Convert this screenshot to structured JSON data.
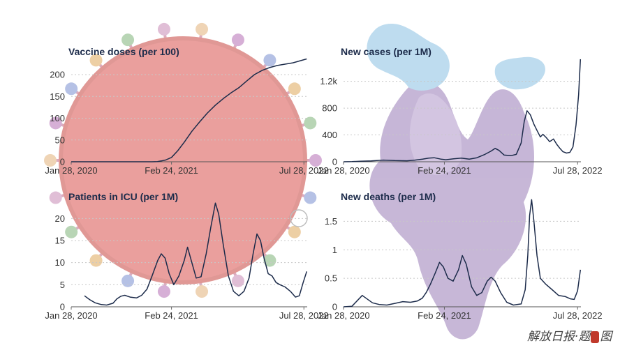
{
  "watermark": {
    "text": "解放日报·题",
    "suffix": "图"
  },
  "colors": {
    "line": "#1c2b4a",
    "virus": "#d9514e",
    "spike_purple": "#8f6fb0",
    "spike_blue": "#7fbbe0"
  },
  "chart_data": [
    {
      "type": "line",
      "title": "Vaccine doses (per 100)",
      "x_ticks": [
        "Jan 28, 2020",
        "Feb 24, 2021",
        "Jul 28, 2022"
      ],
      "x_range": [
        "Jan 28, 2020",
        "Aug 10, 2022"
      ],
      "y_ticks": [
        0,
        50,
        100,
        150,
        200
      ],
      "ylim": [
        0,
        240
      ],
      "grid": true,
      "points": [
        [
          "2020-01-28",
          0
        ],
        [
          "2020-12-10",
          0
        ],
        [
          "2020-12-31",
          0.5
        ],
        [
          "2021-01-15",
          2
        ],
        [
          "2021-02-01",
          4
        ],
        [
          "2021-02-24",
          10
        ],
        [
          "2021-03-20",
          25
        ],
        [
          "2021-04-15",
          45
        ],
        [
          "2021-05-15",
          70
        ],
        [
          "2021-06-15",
          92
        ],
        [
          "2021-07-15",
          112
        ],
        [
          "2021-08-15",
          130
        ],
        [
          "2021-09-15",
          145
        ],
        [
          "2021-10-15",
          158
        ],
        [
          "2021-11-15",
          170
        ],
        [
          "2021-12-15",
          185
        ],
        [
          "2022-01-15",
          200
        ],
        [
          "2022-02-15",
          210
        ],
        [
          "2022-03-15",
          216
        ],
        [
          "2022-04-15",
          221
        ],
        [
          "2022-05-15",
          224
        ],
        [
          "2022-06-15",
          227
        ],
        [
          "2022-07-15",
          232
        ],
        [
          "2022-08-08",
          236
        ]
      ]
    },
    {
      "type": "line",
      "title": "New cases (per 1M)",
      "x_ticks": [
        "Jan 28, 2020",
        "Feb 24, 2021",
        "Jul 28, 2022"
      ],
      "x_range": [
        "Jan 28, 2020",
        "Aug 10, 2022"
      ],
      "y_ticks": [
        0,
        400,
        800,
        1200
      ],
      "y_tick_labels": [
        "0",
        "400",
        "800",
        "1.2k"
      ],
      "ylim": [
        0,
        1560
      ],
      "grid": true,
      "points": [
        [
          "2020-01-28",
          0
        ],
        [
          "2020-03-01",
          2
        ],
        [
          "2020-04-01",
          8
        ],
        [
          "2020-05-15",
          12
        ],
        [
          "2020-07-01",
          25
        ],
        [
          "2020-08-15",
          18
        ],
        [
          "2020-10-01",
          15
        ],
        [
          "2020-11-01",
          25
        ],
        [
          "2020-12-01",
          40
        ],
        [
          "2020-12-25",
          55
        ],
        [
          "2021-01-15",
          60
        ],
        [
          "2021-02-10",
          40
        ],
        [
          "2021-03-01",
          30
        ],
        [
          "2021-04-01",
          45
        ],
        [
          "2021-05-01",
          55
        ],
        [
          "2021-06-01",
          40
        ],
        [
          "2021-07-01",
          60
        ],
        [
          "2021-08-01",
          110
        ],
        [
          "2021-08-25",
          160
        ],
        [
          "2021-09-10",
          200
        ],
        [
          "2021-09-25",
          170
        ],
        [
          "2021-10-15",
          100
        ],
        [
          "2021-11-10",
          90
        ],
        [
          "2021-12-01",
          110
        ],
        [
          "2021-12-20",
          280
        ],
        [
          "2022-01-01",
          600
        ],
        [
          "2022-01-12",
          760
        ],
        [
          "2022-01-25",
          700
        ],
        [
          "2022-02-08",
          560
        ],
        [
          "2022-02-22",
          450
        ],
        [
          "2022-03-05",
          370
        ],
        [
          "2022-03-15",
          410
        ],
        [
          "2022-03-28",
          360
        ],
        [
          "2022-04-10",
          300
        ],
        [
          "2022-04-25",
          340
        ],
        [
          "2022-05-08",
          260
        ],
        [
          "2022-05-20",
          200
        ],
        [
          "2022-06-01",
          150
        ],
        [
          "2022-06-15",
          130
        ],
        [
          "2022-06-28",
          140
        ],
        [
          "2022-07-10",
          220
        ],
        [
          "2022-07-22",
          550
        ],
        [
          "2022-08-01",
          1000
        ],
        [
          "2022-08-08",
          1530
        ]
      ]
    },
    {
      "type": "line",
      "title": "Patients in ICU (per 1M)",
      "x_ticks": [
        "Jan 28, 2020",
        "Feb 24, 2021",
        "Jul 28, 2022"
      ],
      "x_range": [
        "Jan 28, 2020",
        "Aug 10, 2022"
      ],
      "y_ticks": [
        0,
        5,
        10,
        15,
        20
      ],
      "ylim": [
        0,
        24
      ],
      "grid": true,
      "points": [
        [
          "2020-03-20",
          2.5
        ],
        [
          "2020-04-10",
          1.6
        ],
        [
          "2020-05-01",
          0.9
        ],
        [
          "2020-05-25",
          0.5
        ],
        [
          "2020-06-15",
          0.4
        ],
        [
          "2020-07-10",
          0.8
        ],
        [
          "2020-07-25",
          1.8
        ],
        [
          "2020-08-10",
          2.4
        ],
        [
          "2020-08-25",
          2.6
        ],
        [
          "2020-09-15",
          2.2
        ],
        [
          "2020-10-10",
          2.0
        ],
        [
          "2020-10-30",
          2.6
        ],
        [
          "2020-11-20",
          4.0
        ],
        [
          "2020-12-10",
          7.0
        ],
        [
          "2021-01-01",
          10.5
        ],
        [
          "2021-01-15",
          12.0
        ],
        [
          "2021-01-30",
          11.0
        ],
        [
          "2021-02-15",
          7.5
        ],
        [
          "2021-03-05",
          5.0
        ],
        [
          "2021-03-25",
          7.0
        ],
        [
          "2021-04-15",
          10.5
        ],
        [
          "2021-04-28",
          13.5
        ],
        [
          "2021-05-10",
          11.0
        ],
        [
          "2021-06-01",
          6.5
        ],
        [
          "2021-06-20",
          6.8
        ],
        [
          "2021-07-10",
          12.0
        ],
        [
          "2021-07-28",
          18.0
        ],
        [
          "2021-08-15",
          23.5
        ],
        [
          "2021-08-28",
          21.0
        ],
        [
          "2021-09-15",
          14.0
        ],
        [
          "2021-10-05",
          7.0
        ],
        [
          "2021-10-25",
          3.5
        ],
        [
          "2021-11-15",
          2.5
        ],
        [
          "2021-12-05",
          3.5
        ],
        [
          "2021-12-25",
          6.5
        ],
        [
          "2022-01-10",
          12.0
        ],
        [
          "2022-01-25",
          16.5
        ],
        [
          "2022-02-08",
          15.0
        ],
        [
          "2022-02-22",
          11.0
        ],
        [
          "2022-03-10",
          7.5
        ],
        [
          "2022-03-25",
          7.0
        ],
        [
          "2022-04-10",
          5.5
        ],
        [
          "2022-04-25",
          5.0
        ],
        [
          "2022-05-15",
          4.5
        ],
        [
          "2022-06-05",
          3.5
        ],
        [
          "2022-06-25",
          2.2
        ],
        [
          "2022-07-10",
          2.5
        ],
        [
          "2022-07-25",
          5.5
        ],
        [
          "2022-08-08",
          8.0
        ]
      ]
    },
    {
      "type": "line",
      "title": "New deaths (per 1M)",
      "x_ticks": [
        "Jan 28, 2020",
        "Feb 24, 2021",
        "Jul 28, 2022"
      ],
      "x_range": [
        "Jan 28, 2020",
        "Aug 10, 2022"
      ],
      "y_ticks": [
        0,
        0.5,
        1,
        1.5
      ],
      "ylim": [
        0,
        1.86
      ],
      "grid": true,
      "points": [
        [
          "2020-01-28",
          0
        ],
        [
          "2020-03-01",
          0.01
        ],
        [
          "2020-03-20",
          0.1
        ],
        [
          "2020-04-10",
          0.2
        ],
        [
          "2020-04-25",
          0.15
        ],
        [
          "2020-05-20",
          0.07
        ],
        [
          "2020-06-15",
          0.04
        ],
        [
          "2020-07-15",
          0.03
        ],
        [
          "2020-08-15",
          0.06
        ],
        [
          "2020-09-15",
          0.09
        ],
        [
          "2020-10-15",
          0.08
        ],
        [
          "2020-11-10",
          0.1
        ],
        [
          "2020-11-30",
          0.15
        ],
        [
          "2020-12-15",
          0.25
        ],
        [
          "2021-01-01",
          0.4
        ],
        [
          "2021-01-20",
          0.6
        ],
        [
          "2021-02-05",
          0.78
        ],
        [
          "2021-02-20",
          0.7
        ],
        [
          "2021-03-10",
          0.5
        ],
        [
          "2021-03-30",
          0.45
        ],
        [
          "2021-04-20",
          0.65
        ],
        [
          "2021-05-05",
          0.9
        ],
        [
          "2021-05-20",
          0.75
        ],
        [
          "2021-06-10",
          0.35
        ],
        [
          "2021-06-30",
          0.2
        ],
        [
          "2021-07-20",
          0.25
        ],
        [
          "2021-08-10",
          0.45
        ],
        [
          "2021-08-25",
          0.52
        ],
        [
          "2021-09-10",
          0.45
        ],
        [
          "2021-10-01",
          0.25
        ],
        [
          "2021-10-25",
          0.08
        ],
        [
          "2021-11-20",
          0.03
        ],
        [
          "2021-12-20",
          0.05
        ],
        [
          "2022-01-05",
          0.3
        ],
        [
          "2022-01-15",
          0.9
        ],
        [
          "2022-01-22",
          1.6
        ],
        [
          "2022-01-30",
          1.88
        ],
        [
          "2022-02-08",
          1.5
        ],
        [
          "2022-02-20",
          0.9
        ],
        [
          "2022-03-05",
          0.5
        ],
        [
          "2022-03-25",
          0.4
        ],
        [
          "2022-04-20",
          0.3
        ],
        [
          "2022-05-15",
          0.2
        ],
        [
          "2022-06-10",
          0.18
        ],
        [
          "2022-06-30",
          0.14
        ],
        [
          "2022-07-15",
          0.13
        ],
        [
          "2022-07-28",
          0.28
        ],
        [
          "2022-08-08",
          0.65
        ]
      ]
    }
  ]
}
